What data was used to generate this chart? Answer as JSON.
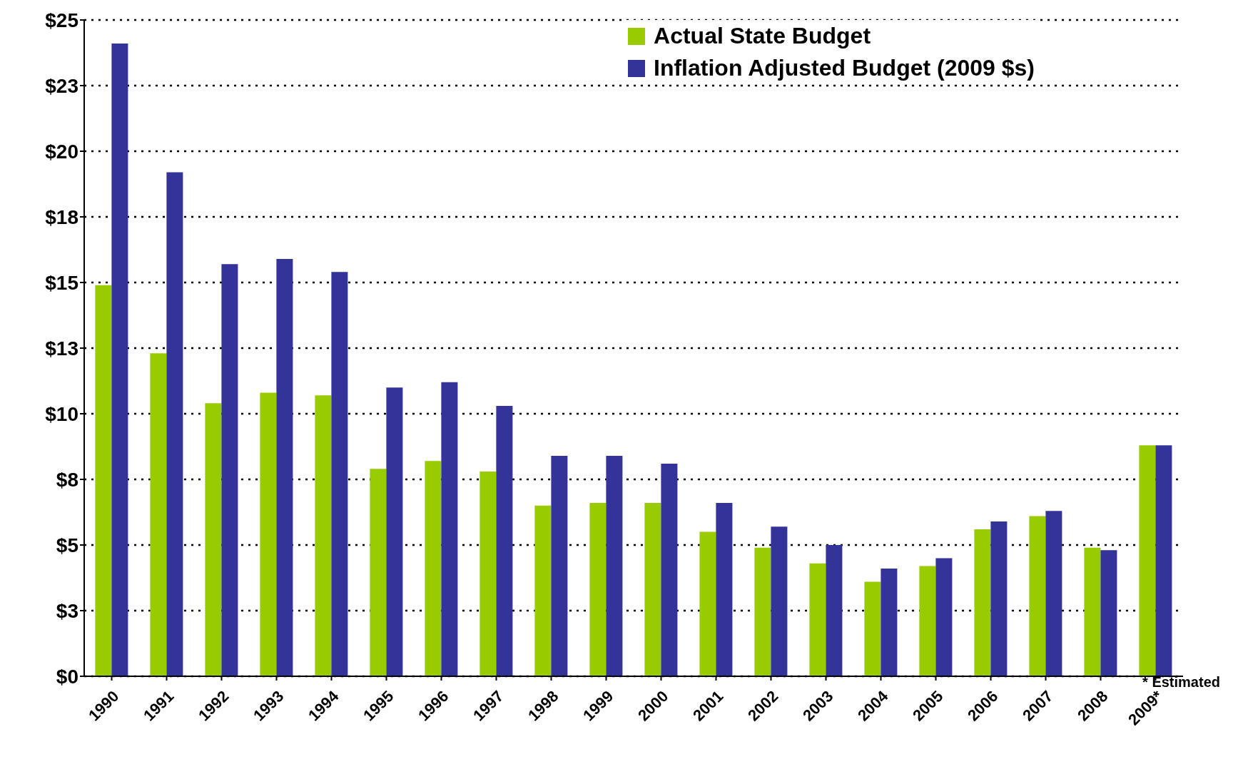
{
  "chart_data": {
    "type": "bar",
    "categories": [
      "1990",
      "1991",
      "1992",
      "1993",
      "1994",
      "1995",
      "1996",
      "1997",
      "1998",
      "1999",
      "2000",
      "2001",
      "2002",
      "2003",
      "2004",
      "2005",
      "2006",
      "2007",
      "2008",
      "2009*"
    ],
    "series": [
      {
        "name": "Actual State Budget",
        "color": "#99cc00",
        "values": [
          14.9,
          12.3,
          10.4,
          10.8,
          10.7,
          7.9,
          8.2,
          7.8,
          6.5,
          6.6,
          6.6,
          5.5,
          4.9,
          4.3,
          3.6,
          4.2,
          5.6,
          6.1,
          4.9,
          8.8
        ]
      },
      {
        "name": "Inflation Adjusted Budget (2009 $s)",
        "color": "#333399",
        "values": [
          24.1,
          19.2,
          15.7,
          15.9,
          15.4,
          11.0,
          11.2,
          10.3,
          8.4,
          8.4,
          8.1,
          6.6,
          5.7,
          5.0,
          4.1,
          4.5,
          5.9,
          6.3,
          4.8,
          8.8
        ]
      }
    ],
    "ylim": [
      0,
      25
    ],
    "yticks": [
      {
        "value": 0,
        "label": "$0"
      },
      {
        "value": 2.5,
        "label": "$3"
      },
      {
        "value": 5,
        "label": "$5"
      },
      {
        "value": 7.5,
        "label": "$8"
      },
      {
        "value": 10,
        "label": "$10"
      },
      {
        "value": 12.5,
        "label": "$13"
      },
      {
        "value": 15,
        "label": "$15"
      },
      {
        "value": 17.5,
        "label": "$18"
      },
      {
        "value": 20,
        "label": "$20"
      },
      {
        "value": 22.5,
        "label": "$23"
      },
      {
        "value": 25,
        "label": "$25"
      }
    ],
    "grid": "y",
    "legend": "top right",
    "annotations": [
      "* Estimated"
    ]
  }
}
